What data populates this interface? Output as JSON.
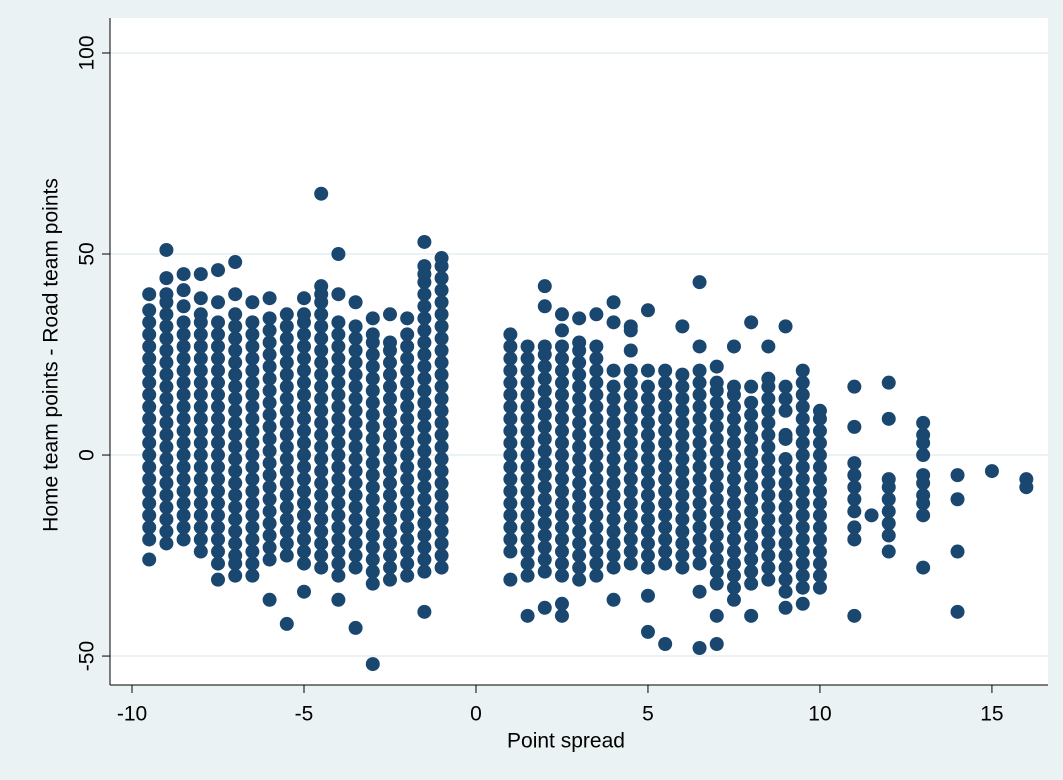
{
  "chart_data": {
    "type": "scatter",
    "x_label": "Point spread",
    "y_label": "Home team points - Road team points",
    "xlim": [
      -10.64,
      16.63
    ],
    "ylim": [
      -57.2,
      108.7
    ],
    "xticks": [
      -10,
      -5,
      0,
      5,
      10,
      15
    ],
    "yticks": [
      -50,
      0,
      50,
      100
    ],
    "grid": true,
    "color": "#1a476f",
    "groups": [
      {
        "x": -9.5,
        "y": [
          -26,
          -21,
          -18,
          -15,
          -12,
          -9,
          -6,
          -3,
          0,
          3,
          6,
          9,
          12,
          15,
          18,
          21,
          24,
          27,
          30,
          33,
          36,
          40
        ]
      },
      {
        "x": -9,
        "y": [
          -22,
          -19,
          -16,
          -13,
          -10,
          -7,
          -4,
          -1,
          2,
          5,
          8,
          11,
          14,
          17,
          20,
          23,
          26,
          29,
          32,
          35,
          38,
          40,
          44,
          51
        ]
      },
      {
        "x": -8.5,
        "y": [
          -21,
          -18,
          -15,
          -12,
          -9,
          -6,
          -3,
          0,
          3,
          6,
          9,
          12,
          15,
          18,
          21,
          24,
          27,
          30,
          33,
          37,
          41,
          45
        ]
      },
      {
        "x": -8,
        "y": [
          -24,
          -21,
          -18,
          -15,
          -12,
          -9,
          -6,
          -3,
          0,
          3,
          6,
          9,
          12,
          15,
          18,
          21,
          24,
          27,
          30,
          33,
          35,
          39,
          45
        ]
      },
      {
        "x": -7.5,
        "y": [
          -31,
          -27,
          -24,
          -21,
          -18,
          -15,
          -12,
          -9,
          -6,
          -3,
          0,
          3,
          6,
          9,
          12,
          15,
          18,
          21,
          24,
          27,
          30,
          33,
          38,
          46
        ]
      },
      {
        "x": -7,
        "y": [
          -30,
          -27,
          -25,
          -22,
          -19,
          -16,
          -13,
          -10,
          -7,
          -4,
          -1,
          2,
          5,
          8,
          11,
          14,
          17,
          20,
          23,
          26,
          29,
          32,
          35,
          40,
          48
        ]
      },
      {
        "x": -6.5,
        "y": [
          -30,
          -27,
          -24,
          -21,
          -18,
          -15,
          -12,
          -9,
          -6,
          -3,
          0,
          3,
          6,
          9,
          12,
          15,
          18,
          21,
          24,
          27,
          30,
          33,
          38
        ]
      },
      {
        "x": -6,
        "y": [
          -36,
          -26,
          -23,
          -20,
          -17,
          -14,
          -11,
          -8,
          -5,
          -2,
          1,
          4,
          7,
          10,
          13,
          16,
          19,
          22,
          25,
          28,
          31,
          34,
          39
        ]
      },
      {
        "x": -5.5,
        "y": [
          -42,
          -25,
          -22,
          -19,
          -16,
          -13,
          -10,
          -7,
          -4,
          -1,
          2,
          5,
          8,
          11,
          14,
          17,
          20,
          23,
          26,
          29,
          32,
          35
        ]
      },
      {
        "x": -5,
        "y": [
          -34,
          -27,
          -24,
          -21,
          -18,
          -15,
          -12,
          -9,
          -6,
          -3,
          0,
          3,
          6,
          9,
          12,
          15,
          18,
          21,
          24,
          27,
          30,
          33,
          35,
          39
        ]
      },
      {
        "x": -4.5,
        "y": [
          -28,
          -25,
          -22,
          -19,
          -16,
          -13,
          -10,
          -7,
          -4,
          -1,
          2,
          5,
          8,
          11,
          14,
          17,
          20,
          23,
          26,
          29,
          32,
          35,
          38,
          40,
          42,
          65
        ]
      },
      {
        "x": -4,
        "y": [
          -36,
          -30,
          -27,
          -24,
          -21,
          -18,
          -15,
          -12,
          -9,
          -6,
          -3,
          0,
          3,
          6,
          9,
          12,
          15,
          18,
          21,
          24,
          27,
          30,
          33,
          40,
          50
        ]
      },
      {
        "x": -3.5,
        "y": [
          -43,
          -28,
          -25,
          -22,
          -19,
          -16,
          -13,
          -10,
          -7,
          -4,
          -1,
          2,
          5,
          8,
          11,
          14,
          17,
          20,
          23,
          26,
          29,
          32,
          38
        ]
      },
      {
        "x": -3,
        "y": [
          -52,
          -32,
          -29,
          -26,
          -23,
          -20,
          -17,
          -14,
          -11,
          -8,
          -5,
          -2,
          1,
          4,
          7,
          10,
          13,
          16,
          19,
          22,
          25,
          28,
          30,
          34
        ]
      },
      {
        "x": -2.5,
        "y": [
          -31,
          -28,
          -25,
          -22,
          -19,
          -16,
          -13,
          -10,
          -7,
          -4,
          -1,
          2,
          5,
          8,
          11,
          14,
          17,
          20,
          23,
          26,
          28,
          35
        ]
      },
      {
        "x": -2,
        "y": [
          -30,
          -27,
          -24,
          -21,
          -18,
          -15,
          -12,
          -9,
          -6,
          -3,
          0,
          3,
          6,
          9,
          12,
          15,
          18,
          21,
          24,
          27,
          30,
          34
        ]
      },
      {
        "x": -1.5,
        "y": [
          -39,
          -29,
          -26,
          -23,
          -20,
          -17,
          -14,
          -11,
          -8,
          -5,
          -2,
          1,
          4,
          7,
          10,
          13,
          16,
          19,
          22,
          25,
          28,
          31,
          34,
          37,
          40,
          43,
          45,
          47,
          53
        ]
      },
      {
        "x": -1,
        "y": [
          -28,
          -25,
          -22,
          -19,
          -16,
          -13,
          -10,
          -7,
          -4,
          -1,
          2,
          5,
          8,
          11,
          14,
          17,
          20,
          23,
          26,
          29,
          32,
          35,
          38,
          41,
          44,
          47,
          49
        ]
      },
      {
        "x": 1,
        "y": [
          -31,
          -24,
          -21,
          -18,
          -15,
          -12,
          -9,
          -6,
          -3,
          0,
          3,
          6,
          9,
          12,
          15,
          18,
          21,
          24,
          27,
          30
        ]
      },
      {
        "x": 1.5,
        "y": [
          -40,
          -30,
          -27,
          -24,
          -21,
          -18,
          -15,
          -12,
          -9,
          -6,
          -3,
          0,
          3,
          6,
          9,
          12,
          15,
          18,
          21,
          24,
          27
        ]
      },
      {
        "x": 2,
        "y": [
          -38,
          -29,
          -26,
          -23,
          -20,
          -17,
          -14,
          -11,
          -8,
          -5,
          -2,
          1,
          4,
          7,
          10,
          13,
          16,
          19,
          22,
          25,
          27,
          37,
          42
        ]
      },
      {
        "x": 2.5,
        "y": [
          -40,
          -37,
          -30,
          -27,
          -24,
          -21,
          -18,
          -15,
          -12,
          -9,
          -6,
          -3,
          0,
          3,
          6,
          9,
          12,
          15,
          18,
          21,
          24,
          27,
          31,
          35
        ]
      },
      {
        "x": 3,
        "y": [
          -31,
          -28,
          -25,
          -22,
          -19,
          -16,
          -13,
          -10,
          -7,
          -4,
          -1,
          2,
          5,
          8,
          11,
          14,
          17,
          20,
          23,
          26,
          28,
          34
        ]
      },
      {
        "x": 3.5,
        "y": [
          -30,
          -27,
          -24,
          -21,
          -18,
          -15,
          -12,
          -9,
          -6,
          -3,
          0,
          3,
          6,
          9,
          12,
          15,
          18,
          21,
          24,
          27,
          35
        ]
      },
      {
        "x": 4,
        "y": [
          -36,
          -28,
          -25,
          -22,
          -19,
          -16,
          -13,
          -10,
          -7,
          -4,
          -1,
          2,
          5,
          8,
          11,
          14,
          17,
          21,
          33,
          38
        ]
      },
      {
        "x": 4.5,
        "y": [
          -27,
          -24,
          -21,
          -18,
          -15,
          -12,
          -9,
          -6,
          -3,
          0,
          3,
          6,
          9,
          12,
          15,
          18,
          21,
          26,
          31,
          32
        ]
      },
      {
        "x": 5,
        "y": [
          -44,
          -35,
          -28,
          -25,
          -22,
          -19,
          -16,
          -13,
          -10,
          -7,
          -4,
          -1,
          2,
          5,
          8,
          11,
          14,
          17,
          21,
          36
        ]
      },
      {
        "x": 5.5,
        "y": [
          -47,
          -27,
          -24,
          -21,
          -18,
          -15,
          -12,
          -9,
          -6,
          -3,
          0,
          3,
          6,
          9,
          12,
          15,
          18,
          21
        ]
      },
      {
        "x": 6,
        "y": [
          -28,
          -25,
          -22,
          -19,
          -16,
          -13,
          -10,
          -7,
          -4,
          -1,
          2,
          5,
          8,
          11,
          14,
          17,
          20,
          32
        ]
      },
      {
        "x": 6.5,
        "y": [
          -48,
          -34,
          -27,
          -24,
          -21,
          -18,
          -15,
          -12,
          -9,
          -6,
          -3,
          0,
          3,
          6,
          9,
          12,
          15,
          18,
          21,
          27,
          43
        ]
      },
      {
        "x": 7,
        "y": [
          -47,
          -40,
          -32,
          -29,
          -26,
          -23,
          -20,
          -17,
          -14,
          -11,
          -8,
          -5,
          -2,
          1,
          4,
          7,
          10,
          13,
          16,
          18,
          22
        ]
      },
      {
        "x": 7.5,
        "y": [
          -36,
          -33,
          -30,
          -27,
          -24,
          -21,
          -18,
          -15,
          -12,
          -9,
          -6,
          -3,
          0,
          3,
          6,
          9,
          12,
          15,
          17,
          27
        ]
      },
      {
        "x": 8,
        "y": [
          -40,
          -32,
          -29,
          -26,
          -23,
          -20,
          -17,
          -14,
          -11,
          -8,
          -5,
          -2,
          1,
          4,
          7,
          10,
          13,
          17,
          33
        ]
      },
      {
        "x": 8.5,
        "y": [
          -31,
          -28,
          -25,
          -22,
          -19,
          -16,
          -13,
          -10,
          -7,
          -4,
          -1,
          2,
          5,
          8,
          11,
          14,
          17,
          19,
          27
        ]
      },
      {
        "x": 9,
        "y": [
          -38,
          -34,
          -31,
          -28,
          -25,
          -22,
          -19,
          -16,
          -13,
          -10,
          -7,
          -4,
          -1,
          4,
          5,
          11,
          14,
          17,
          32
        ]
      },
      {
        "x": 9.5,
        "y": [
          -37,
          -33,
          -30,
          -27,
          -24,
          -21,
          -18,
          -15,
          -12,
          -9,
          -6,
          -3,
          0,
          3,
          6,
          9,
          12,
          15,
          18,
          21
        ]
      },
      {
        "x": 10,
        "y": [
          -33,
          -30,
          -27,
          -24,
          -21,
          -18,
          -15,
          -12,
          -9,
          -6,
          -3,
          0,
          3,
          6,
          9,
          11
        ]
      },
      {
        "x": 11,
        "y": [
          -40,
          -21,
          -18,
          -14,
          -11,
          -8,
          -5,
          -2,
          7,
          17
        ]
      },
      {
        "x": 11.5,
        "y": [
          -15
        ]
      },
      {
        "x": 12,
        "y": [
          -24,
          -20,
          -17,
          -14,
          -11,
          -8,
          -6,
          9,
          18
        ]
      },
      {
        "x": 13,
        "y": [
          -28,
          -15,
          -12,
          -10,
          -7,
          -5,
          0,
          3,
          5,
          8
        ]
      },
      {
        "x": 14,
        "y": [
          -39,
          -24,
          -11,
          -5
        ]
      },
      {
        "x": 15,
        "y": [
          -4
        ]
      },
      {
        "x": 16,
        "y": [
          -8,
          -6
        ]
      }
    ]
  }
}
